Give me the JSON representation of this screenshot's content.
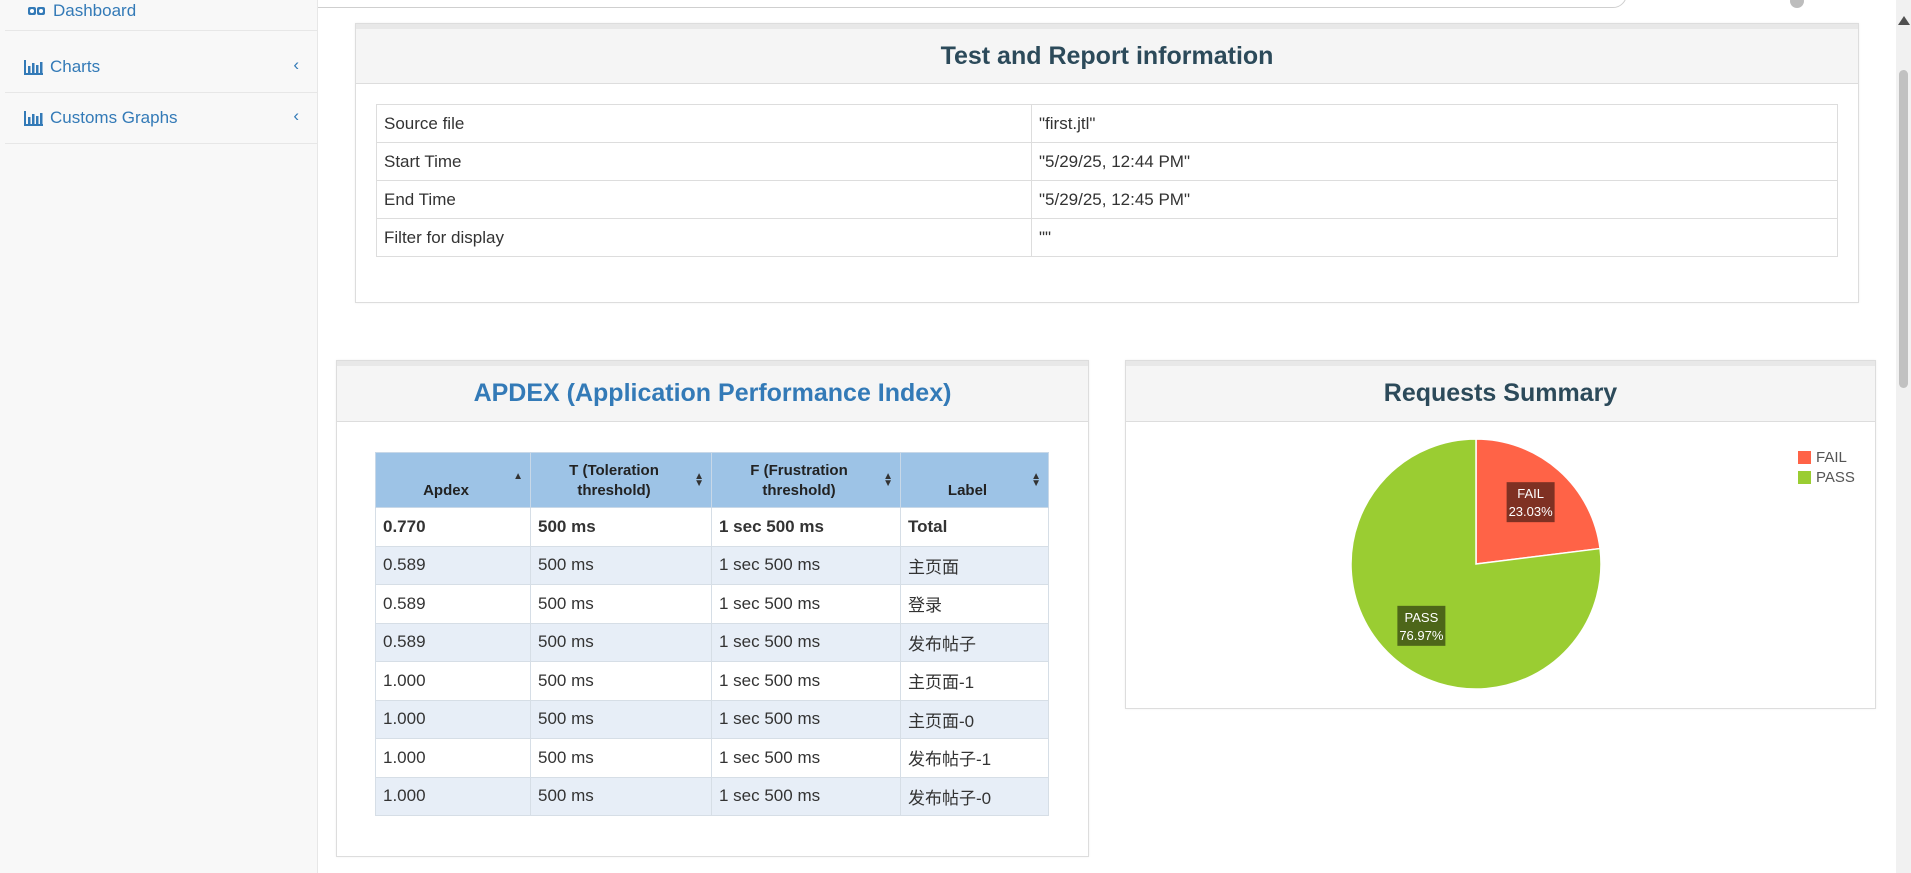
{
  "sidebar": {
    "items": [
      {
        "label": "Dashboard",
        "icon": "dashboard-icon"
      },
      {
        "label": "Charts",
        "icon": "bar-chart-icon",
        "chevron": "‹"
      },
      {
        "label": "Customs Graphs",
        "icon": "bar-chart-icon",
        "chevron": "‹"
      }
    ]
  },
  "report_info": {
    "title": "Test and Report information",
    "rows": [
      {
        "label": "Source file",
        "value": "\"first.jtl\""
      },
      {
        "label": "Start Time",
        "value": "\"5/29/25, 12:44 PM\""
      },
      {
        "label": "End Time",
        "value": "\"5/29/25, 12:45 PM\""
      },
      {
        "label": "Filter for display",
        "value": "\"\""
      }
    ]
  },
  "apdex": {
    "title": "APDEX (Application Performance Index)",
    "headers": {
      "apdex": "Apdex",
      "t_line1": "T (Toleration",
      "t_line2": "threshold)",
      "f_line1": "F (Frustration",
      "f_line2": "threshold)",
      "label": "Label"
    },
    "rows": [
      {
        "apdex": "0.770",
        "t": "500 ms",
        "f": "1 sec 500 ms",
        "label": "Total"
      },
      {
        "apdex": "0.589",
        "t": "500 ms",
        "f": "1 sec 500 ms",
        "label": "主页面"
      },
      {
        "apdex": "0.589",
        "t": "500 ms",
        "f": "1 sec 500 ms",
        "label": "登录"
      },
      {
        "apdex": "0.589",
        "t": "500 ms",
        "f": "1 sec 500 ms",
        "label": "发布帖子"
      },
      {
        "apdex": "1.000",
        "t": "500 ms",
        "f": "1 sec 500 ms",
        "label": "主页面-1"
      },
      {
        "apdex": "1.000",
        "t": "500 ms",
        "f": "1 sec 500 ms",
        "label": "主页面-0"
      },
      {
        "apdex": "1.000",
        "t": "500 ms",
        "f": "1 sec 500 ms",
        "label": "发布帖子-1"
      },
      {
        "apdex": "1.000",
        "t": "500 ms",
        "f": "1 sec 500 ms",
        "label": "发布帖子-0"
      }
    ]
  },
  "requests_summary": {
    "title": "Requests Summary",
    "legend": [
      {
        "name": "FAIL",
        "color": "#ff6347"
      },
      {
        "name": "PASS",
        "color": "#9acd32"
      }
    ]
  },
  "chart_data": {
    "type": "pie",
    "slices": [
      {
        "name": "FAIL",
        "value": 23.03,
        "label_line1": "FAIL",
        "label_line2": "23.03%",
        "color": "#ff6347"
      },
      {
        "name": "PASS",
        "value": 76.97,
        "label_line1": "PASS",
        "label_line2": "76.97%",
        "color": "#9acd32"
      }
    ]
  },
  "colors": {
    "link": "#337ab7",
    "header_blue": "#9dc3e6",
    "fail": "#ff6347",
    "pass": "#9acd32"
  }
}
